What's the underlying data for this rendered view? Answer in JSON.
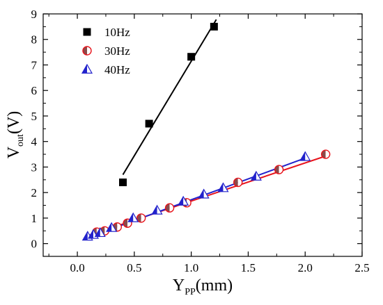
{
  "chart_data": {
    "type": "scatter",
    "xlabel": "Y_PP(mm)",
    "xlabel_main": "Y",
    "xlabel_sub": "PP",
    "xlabel_unit": "(mm)",
    "ylabel": "V_out(V)",
    "ylabel_main": "V",
    "ylabel_sub": "out",
    "ylabel_unit": "(V)",
    "xlim": [
      -0.3,
      2.5
    ],
    "ylim": [
      -0.5,
      9
    ],
    "xticks": [
      "0.0",
      "0.5",
      "1.0",
      "1.5",
      "2.0",
      "2.5"
    ],
    "yticks": [
      "0",
      "1",
      "2",
      "3",
      "4",
      "5",
      "6",
      "7",
      "8",
      "9"
    ],
    "legend_position": "top-left",
    "series": [
      {
        "name": "10Hz",
        "marker": "square",
        "color": "#000000",
        "points": [
          [
            0.4,
            2.4
          ],
          [
            0.63,
            4.7
          ],
          [
            1.0,
            7.32
          ],
          [
            1.2,
            8.5
          ]
        ],
        "fit": [
          [
            0.4,
            2.7
          ],
          [
            1.22,
            8.78
          ]
        ],
        "fit_color": "#000000"
      },
      {
        "name": "30Hz",
        "marker": "half-circle",
        "color": "#e8141c",
        "fill_color": "#8b4a4a",
        "points": [
          [
            0.17,
            0.45
          ],
          [
            0.24,
            0.5
          ],
          [
            0.35,
            0.65
          ],
          [
            0.44,
            0.8
          ],
          [
            0.56,
            1.0
          ],
          [
            0.81,
            1.4
          ],
          [
            0.96,
            1.6
          ],
          [
            1.41,
            2.4
          ],
          [
            1.77,
            2.9
          ],
          [
            2.18,
            3.5
          ]
        ],
        "fit": [
          [
            0.1,
            0.32
          ],
          [
            2.18,
            3.43
          ]
        ],
        "fit_color": "#e8141c"
      },
      {
        "name": "40Hz",
        "marker": "triangle",
        "color": "#2222cc",
        "points": [
          [
            0.09,
            0.28
          ],
          [
            0.14,
            0.35
          ],
          [
            0.2,
            0.42
          ],
          [
            0.3,
            0.62
          ],
          [
            0.49,
            1.0
          ],
          [
            0.7,
            1.3
          ],
          [
            0.93,
            1.65
          ],
          [
            1.11,
            1.93
          ],
          [
            1.28,
            2.18
          ],
          [
            1.57,
            2.63
          ],
          [
            2.0,
            3.4
          ]
        ],
        "fit": [
          [
            0.08,
            0.22
          ],
          [
            2.0,
            3.35
          ]
        ],
        "fit_color": "#2222cc"
      }
    ]
  }
}
